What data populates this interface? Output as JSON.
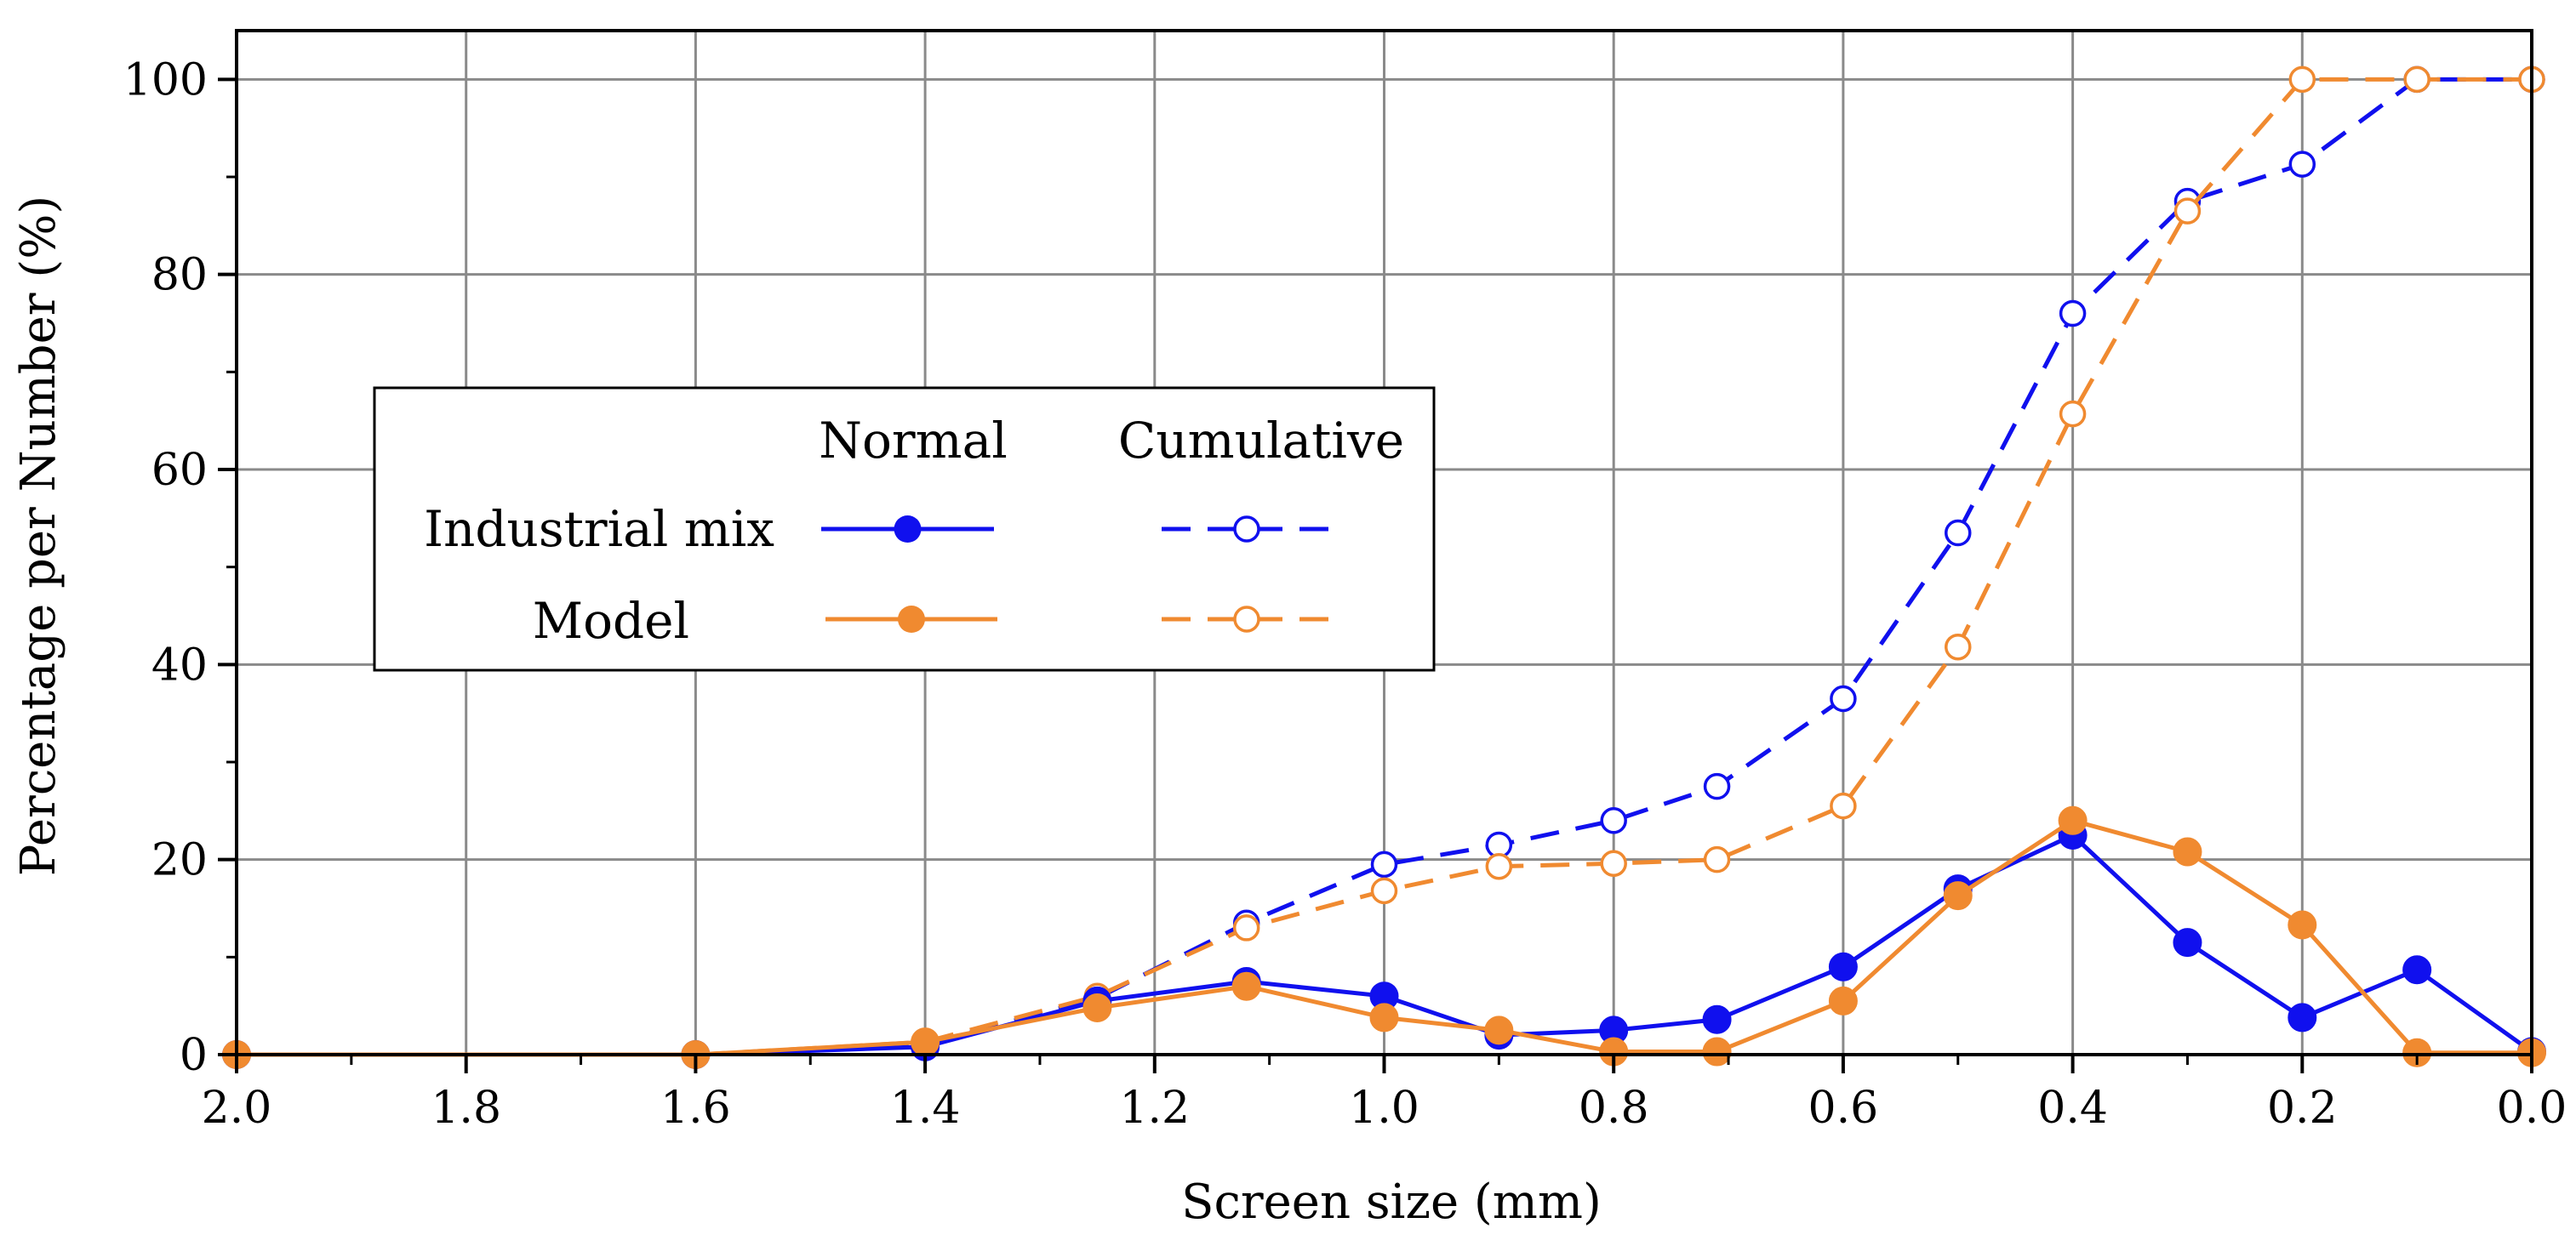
{
  "chart_data": {
    "type": "line",
    "title": "",
    "xlabel": "Screen size (mm)",
    "ylabel": "Percentage per Number (%)",
    "xlim": [
      2.0,
      0.0
    ],
    "ylim": [
      0,
      105
    ],
    "x_reversed": true,
    "grid": true,
    "x_ticks": [
      "2.0",
      "1.8",
      "1.6",
      "1.4",
      "1.2",
      "1.0",
      "0.8",
      "0.6",
      "0.4",
      "0.2",
      "0.0"
    ],
    "y_ticks": [
      "0",
      "20",
      "40",
      "60",
      "80",
      "100"
    ],
    "legend": {
      "placement": "center-left",
      "col_headers": [
        "Normal",
        "Cumulative"
      ],
      "row_labels": [
        "Industrial mix",
        "Model"
      ]
    },
    "series": [
      {
        "name": "Industrial mix - Normal",
        "color": "#1010ee",
        "style": "solid",
        "marker": "filled",
        "x": [
          2.0,
          1.6,
          1.4,
          1.25,
          1.12,
          1.0,
          0.9,
          0.8,
          0.71,
          0.6,
          0.5,
          0.4,
          0.3,
          0.2,
          0.1,
          0.0
        ],
        "y": [
          0,
          0,
          0.8,
          5.5,
          7.5,
          6.0,
          2.0,
          2.5,
          3.6,
          9.0,
          17.0,
          22.5,
          11.5,
          3.8,
          8.7,
          0.3
        ]
      },
      {
        "name": "Model - Normal",
        "color": "#f08a30",
        "style": "solid",
        "marker": "filled",
        "x": [
          2.0,
          1.6,
          1.4,
          1.25,
          1.12,
          1.0,
          0.9,
          0.8,
          0.71,
          0.6,
          0.5,
          0.4,
          0.3,
          0.2,
          0.1,
          0.0
        ],
        "y": [
          0,
          0,
          1.3,
          4.8,
          7.0,
          3.8,
          2.5,
          0.3,
          0.3,
          5.5,
          16.3,
          24.0,
          20.8,
          13.3,
          0.2,
          0.2
        ]
      },
      {
        "name": "Industrial mix - Cumulative",
        "color": "#1010ee",
        "style": "dashed",
        "marker": "open",
        "x": [
          2.0,
          1.6,
          1.4,
          1.25,
          1.12,
          1.0,
          0.9,
          0.8,
          0.71,
          0.6,
          0.5,
          0.4,
          0.3,
          0.2,
          0.1,
          0.0
        ],
        "y": [
          0,
          0,
          1.0,
          5.8,
          13.5,
          19.5,
          21.5,
          24.0,
          27.5,
          36.5,
          53.5,
          76.0,
          87.5,
          91.3,
          100,
          100
        ]
      },
      {
        "name": "Model - Cumulative",
        "color": "#f08a30",
        "style": "dashed",
        "marker": "open",
        "x": [
          2.0,
          1.6,
          1.4,
          1.25,
          1.12,
          1.0,
          0.9,
          0.8,
          0.71,
          0.6,
          0.5,
          0.4,
          0.3,
          0.2,
          0.1,
          0.0
        ],
        "y": [
          0,
          0,
          1.3,
          6.0,
          13.0,
          16.8,
          19.3,
          19.6,
          20.0,
          25.5,
          41.8,
          65.7,
          86.5,
          100,
          100,
          100
        ]
      }
    ]
  }
}
